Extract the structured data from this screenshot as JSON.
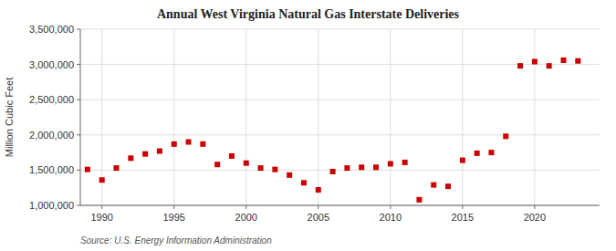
{
  "chart_data": {
    "type": "scatter",
    "title": "Annual West Virginia Natural Gas Interstate Deliveries",
    "ylabel": "Million Cubic Feet",
    "annotations": [
      "Source: U.S. Energy Information Administration"
    ],
    "x": [
      1989,
      1990,
      1991,
      1992,
      1993,
      1994,
      1995,
      1996,
      1997,
      1998,
      1999,
      2000,
      2001,
      2002,
      2003,
      2004,
      2005,
      2006,
      2007,
      2008,
      2009,
      2010,
      2011,
      2012,
      2013,
      2014,
      2015,
      2016,
      2017,
      2018,
      2019,
      2020,
      2021,
      2022,
      2023
    ],
    "values": [
      1510000,
      1360000,
      1530000,
      1670000,
      1730000,
      1770000,
      1870000,
      1900000,
      1870000,
      1580000,
      1700000,
      1600000,
      1530000,
      1510000,
      1430000,
      1320000,
      1220000,
      1480000,
      1530000,
      1540000,
      1540000,
      1590000,
      1610000,
      1080000,
      1290000,
      1270000,
      1640000,
      1740000,
      1750000,
      1980000,
      2980000,
      3040000,
      2980000,
      3060000,
      3050000
    ],
    "color": "#cc0000",
    "marker": "square",
    "grid": true,
    "xlim": [
      1988.5,
      2024.5
    ],
    "xticks": [
      1990,
      1995,
      2000,
      2005,
      2010,
      2015,
      2020
    ],
    "ylim": [
      1000000,
      3500000
    ],
    "yticks": [
      {
        "value": 1000000,
        "label": "1,000,000"
      },
      {
        "value": 1500000,
        "label": "1,500,000"
      },
      {
        "value": 2000000,
        "label": "2,000,000"
      },
      {
        "value": 2500000,
        "label": "2,500,000"
      },
      {
        "value": 3000000,
        "label": "3,000,000"
      },
      {
        "value": 3500000,
        "label": "3,500,000"
      }
    ]
  }
}
